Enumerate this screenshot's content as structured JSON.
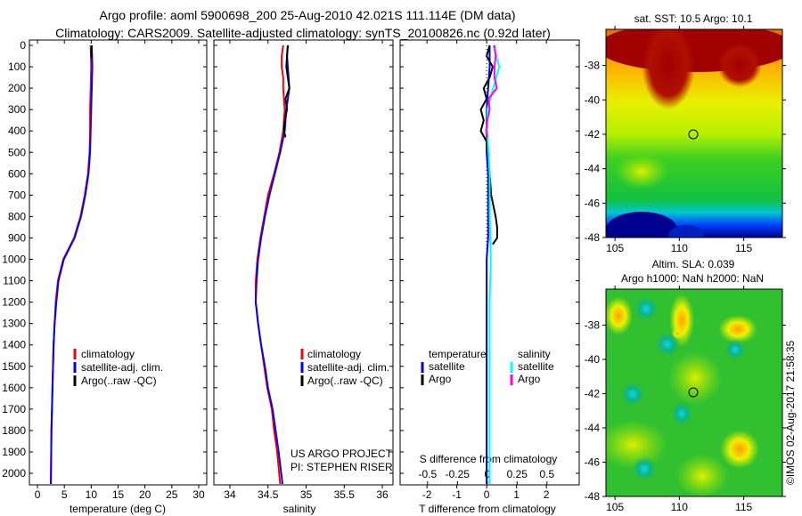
{
  "title_line1": "Argo profile: aoml 5900698_200 25-Aug-2010 42.021S 111.114E (DM data)",
  "title_line2": "Climatology: CARS2009. Satellite-adjusted climatology: synTS_20100826.nc (0.92d later)",
  "credit": "©IMOS 02-Aug-2017 21:58:35",
  "colors": {
    "climatology": "#ff0000",
    "satellite": "#0000ff",
    "argo": "#000000",
    "sal_satellite": "#00ffff",
    "sal_argo": "#ff00ff"
  },
  "chart_data": [
    {
      "type": "line",
      "title": "",
      "xlabel": "temperature (deg C)",
      "ylabel": "",
      "xlim": [
        -1.5,
        31.5
      ],
      "ylim": [
        2060,
        0
      ],
      "xticks": [
        "0",
        "5",
        "10",
        "15",
        "20",
        "25",
        "30"
      ],
      "yticks": [
        "0",
        "100",
        "200",
        "300",
        "400",
        "500",
        "600",
        "700",
        "800",
        "900",
        "1000",
        "1100",
        "1200",
        "1300",
        "1400",
        "1500",
        "1600",
        "1700",
        "1800",
        "1900",
        "2000"
      ],
      "legend": [
        "climatology",
        "satellite-adj. clim.",
        "Argo(..raw -QC)"
      ],
      "legend_placement": "lower-center",
      "series": [
        {
          "name": "climatology",
          "depth": [
            0,
            100,
            200,
            300,
            400,
            500,
            600,
            700,
            800,
            900,
            1000,
            1100,
            1200,
            1300,
            1400,
            1600,
            1800,
            2050
          ],
          "values": [
            9.9,
            10.0,
            9.9,
            9.8,
            9.8,
            9.7,
            9.4,
            8.8,
            8.0,
            6.8,
            4.8,
            3.8,
            3.4,
            3.2,
            3.0,
            2.8,
            2.6,
            2.5
          ]
        },
        {
          "name": "satellite-adj. clim.",
          "depth": [
            0,
            100,
            200,
            300,
            400,
            500,
            600,
            700,
            800,
            900,
            1000,
            1100,
            1200,
            1300,
            1400,
            1600,
            1800,
            2050
          ],
          "values": [
            10.1,
            10.2,
            10.1,
            10.0,
            9.9,
            9.8,
            9.5,
            8.9,
            8.1,
            6.9,
            4.9,
            3.9,
            3.5,
            3.2,
            3.0,
            2.8,
            2.6,
            2.5
          ]
        },
        {
          "name": "Argo(..raw -QC)",
          "depth": [
            0,
            30,
            60
          ],
          "values": [
            10.1,
            10.0,
            10.1
          ]
        }
      ]
    },
    {
      "type": "line",
      "xlabel": "salinity",
      "xlim": [
        33.79,
        36.14
      ],
      "ylim": [
        2060,
        0
      ],
      "xticks": [
        "34",
        "34.5",
        "35",
        "35.5",
        "36"
      ],
      "legend": [
        "climatology",
        "satellite-adj. clim.",
        "Argo(..raw -QC)"
      ],
      "legend_placement": "lower-center",
      "annotations": [
        "US ARGO PROJECT",
        "PI: STEPHEN RISER"
      ],
      "series": [
        {
          "name": "climatology",
          "depth": [
            0,
            50,
            100,
            150,
            200,
            300,
            400,
            500,
            600,
            700,
            800,
            900,
            1000,
            1100,
            1200,
            1300,
            1400,
            1500,
            1600,
            1700,
            1800,
            1900,
            2050
          ],
          "values": [
            34.7,
            34.68,
            34.68,
            34.7,
            34.7,
            34.72,
            34.7,
            34.65,
            34.58,
            34.5,
            34.45,
            34.4,
            34.36,
            34.34,
            34.34,
            34.37,
            34.41,
            34.45,
            34.49,
            34.55,
            34.58,
            34.62,
            34.66
          ]
        },
        {
          "name": "satellite-adj. clim.",
          "depth": [
            0,
            50,
            100,
            150,
            200,
            300,
            400,
            500,
            600,
            700,
            800,
            900,
            1000,
            1100,
            1200,
            1300,
            1400,
            1500,
            1600,
            1700,
            1800,
            1900,
            2050
          ],
          "values": [
            34.76,
            34.75,
            34.76,
            34.77,
            34.78,
            34.74,
            34.72,
            34.66,
            34.59,
            34.52,
            34.46,
            34.41,
            34.37,
            34.35,
            34.34,
            34.37,
            34.41,
            34.46,
            34.5,
            34.56,
            34.6,
            34.64,
            34.69
          ]
        },
        {
          "name": "Argo(..raw -QC)",
          "depth": [
            0,
            50,
            100,
            150,
            200,
            250,
            300,
            350,
            400,
            430
          ],
          "values": [
            34.76,
            34.75,
            34.74,
            34.76,
            34.78,
            34.73,
            34.75,
            34.72,
            34.71,
            34.73
          ]
        }
      ]
    },
    {
      "type": "line",
      "xlabel": "T difference from climatology",
      "xlabel_top": "S difference from climatology",
      "xlim": [
        -2.9,
        3.1
      ],
      "xlim_salinity": [
        -0.73,
        0.77
      ],
      "ylim": [
        2060,
        0
      ],
      "xticks": [
        "-2",
        "-1",
        "0",
        "1",
        "2"
      ],
      "xticks_salinity": [
        "-0.5",
        "-0.25",
        "0",
        "0.25",
        "0.5"
      ],
      "legend_titles": [
        "temperature",
        "salinity"
      ],
      "legend": [
        "satellite",
        "Argo",
        "satellite",
        "Argo"
      ],
      "legend_placement": "lower-center",
      "series": [
        {
          "name": "temperature satellite",
          "depth": [
            0,
            100,
            200,
            300,
            400,
            500,
            600,
            700,
            800,
            900,
            1000,
            1200,
            1500,
            1800,
            2050
          ],
          "values": [
            0.1,
            0.1,
            0.05,
            0,
            0,
            0,
            0.05,
            0.05,
            0.05,
            0.05,
            0.0,
            0.0,
            0.0,
            0.0,
            0.0
          ]
        },
        {
          "name": "temperature Argo",
          "depth": [
            0,
            50,
            100,
            150,
            200,
            250,
            300,
            350,
            400,
            450,
            500,
            600,
            700,
            800,
            850,
            900,
            930
          ],
          "values": [
            0.1,
            0.0,
            0.2,
            0.1,
            -0.1,
            0.0,
            -0.2,
            -0.1,
            -0.2,
            0.0,
            0.05,
            0.1,
            0.15,
            0.3,
            0.35,
            0.35,
            0.2
          ]
        },
        {
          "name": "salinity satellite",
          "depth": [
            0,
            100,
            200,
            300,
            400,
            600,
            800,
            1000,
            1200,
            1500,
            1800,
            2050
          ],
          "values": [
            0.05,
            0.1,
            0.05,
            0.0,
            0.0,
            0.02,
            0.02,
            0.03,
            0.02,
            0.02,
            0.02,
            0.02
          ]
        },
        {
          "name": "salinity Argo",
          "depth": [
            0,
            50,
            100,
            150,
            200,
            250,
            300,
            350,
            400,
            430
          ],
          "values": [
            0.06,
            0.07,
            0.06,
            0.06,
            0.08,
            0.01,
            0.02,
            0.0,
            -0.01,
            0.0
          ]
        }
      ]
    },
    {
      "type": "heatmap",
      "title": "sat. SST: 10.5 Argo: 10.1",
      "xlim": [
        104.3,
        118
      ],
      "ylim": [
        -48,
        -35.9
      ],
      "xticks": [
        "105",
        "110",
        "115"
      ],
      "yticks": [
        "-38",
        "-40",
        "-42",
        "-44",
        "-46",
        "-48"
      ],
      "marker": {
        "lon": 111.114,
        "lat": -42.021
      }
    },
    {
      "type": "heatmap",
      "title": "Altim. SLA: 0.039",
      "subtitle": "Argo h1000: NaN h2000: NaN",
      "xlim": [
        104.3,
        118
      ],
      "ylim": [
        -48,
        -35.9
      ],
      "xticks": [
        "105",
        "110",
        "115"
      ],
      "yticks": [
        "-38",
        "-40",
        "-42",
        "-44",
        "-46",
        "-48"
      ],
      "marker": {
        "lon": 111.114,
        "lat": -42.021
      }
    }
  ]
}
